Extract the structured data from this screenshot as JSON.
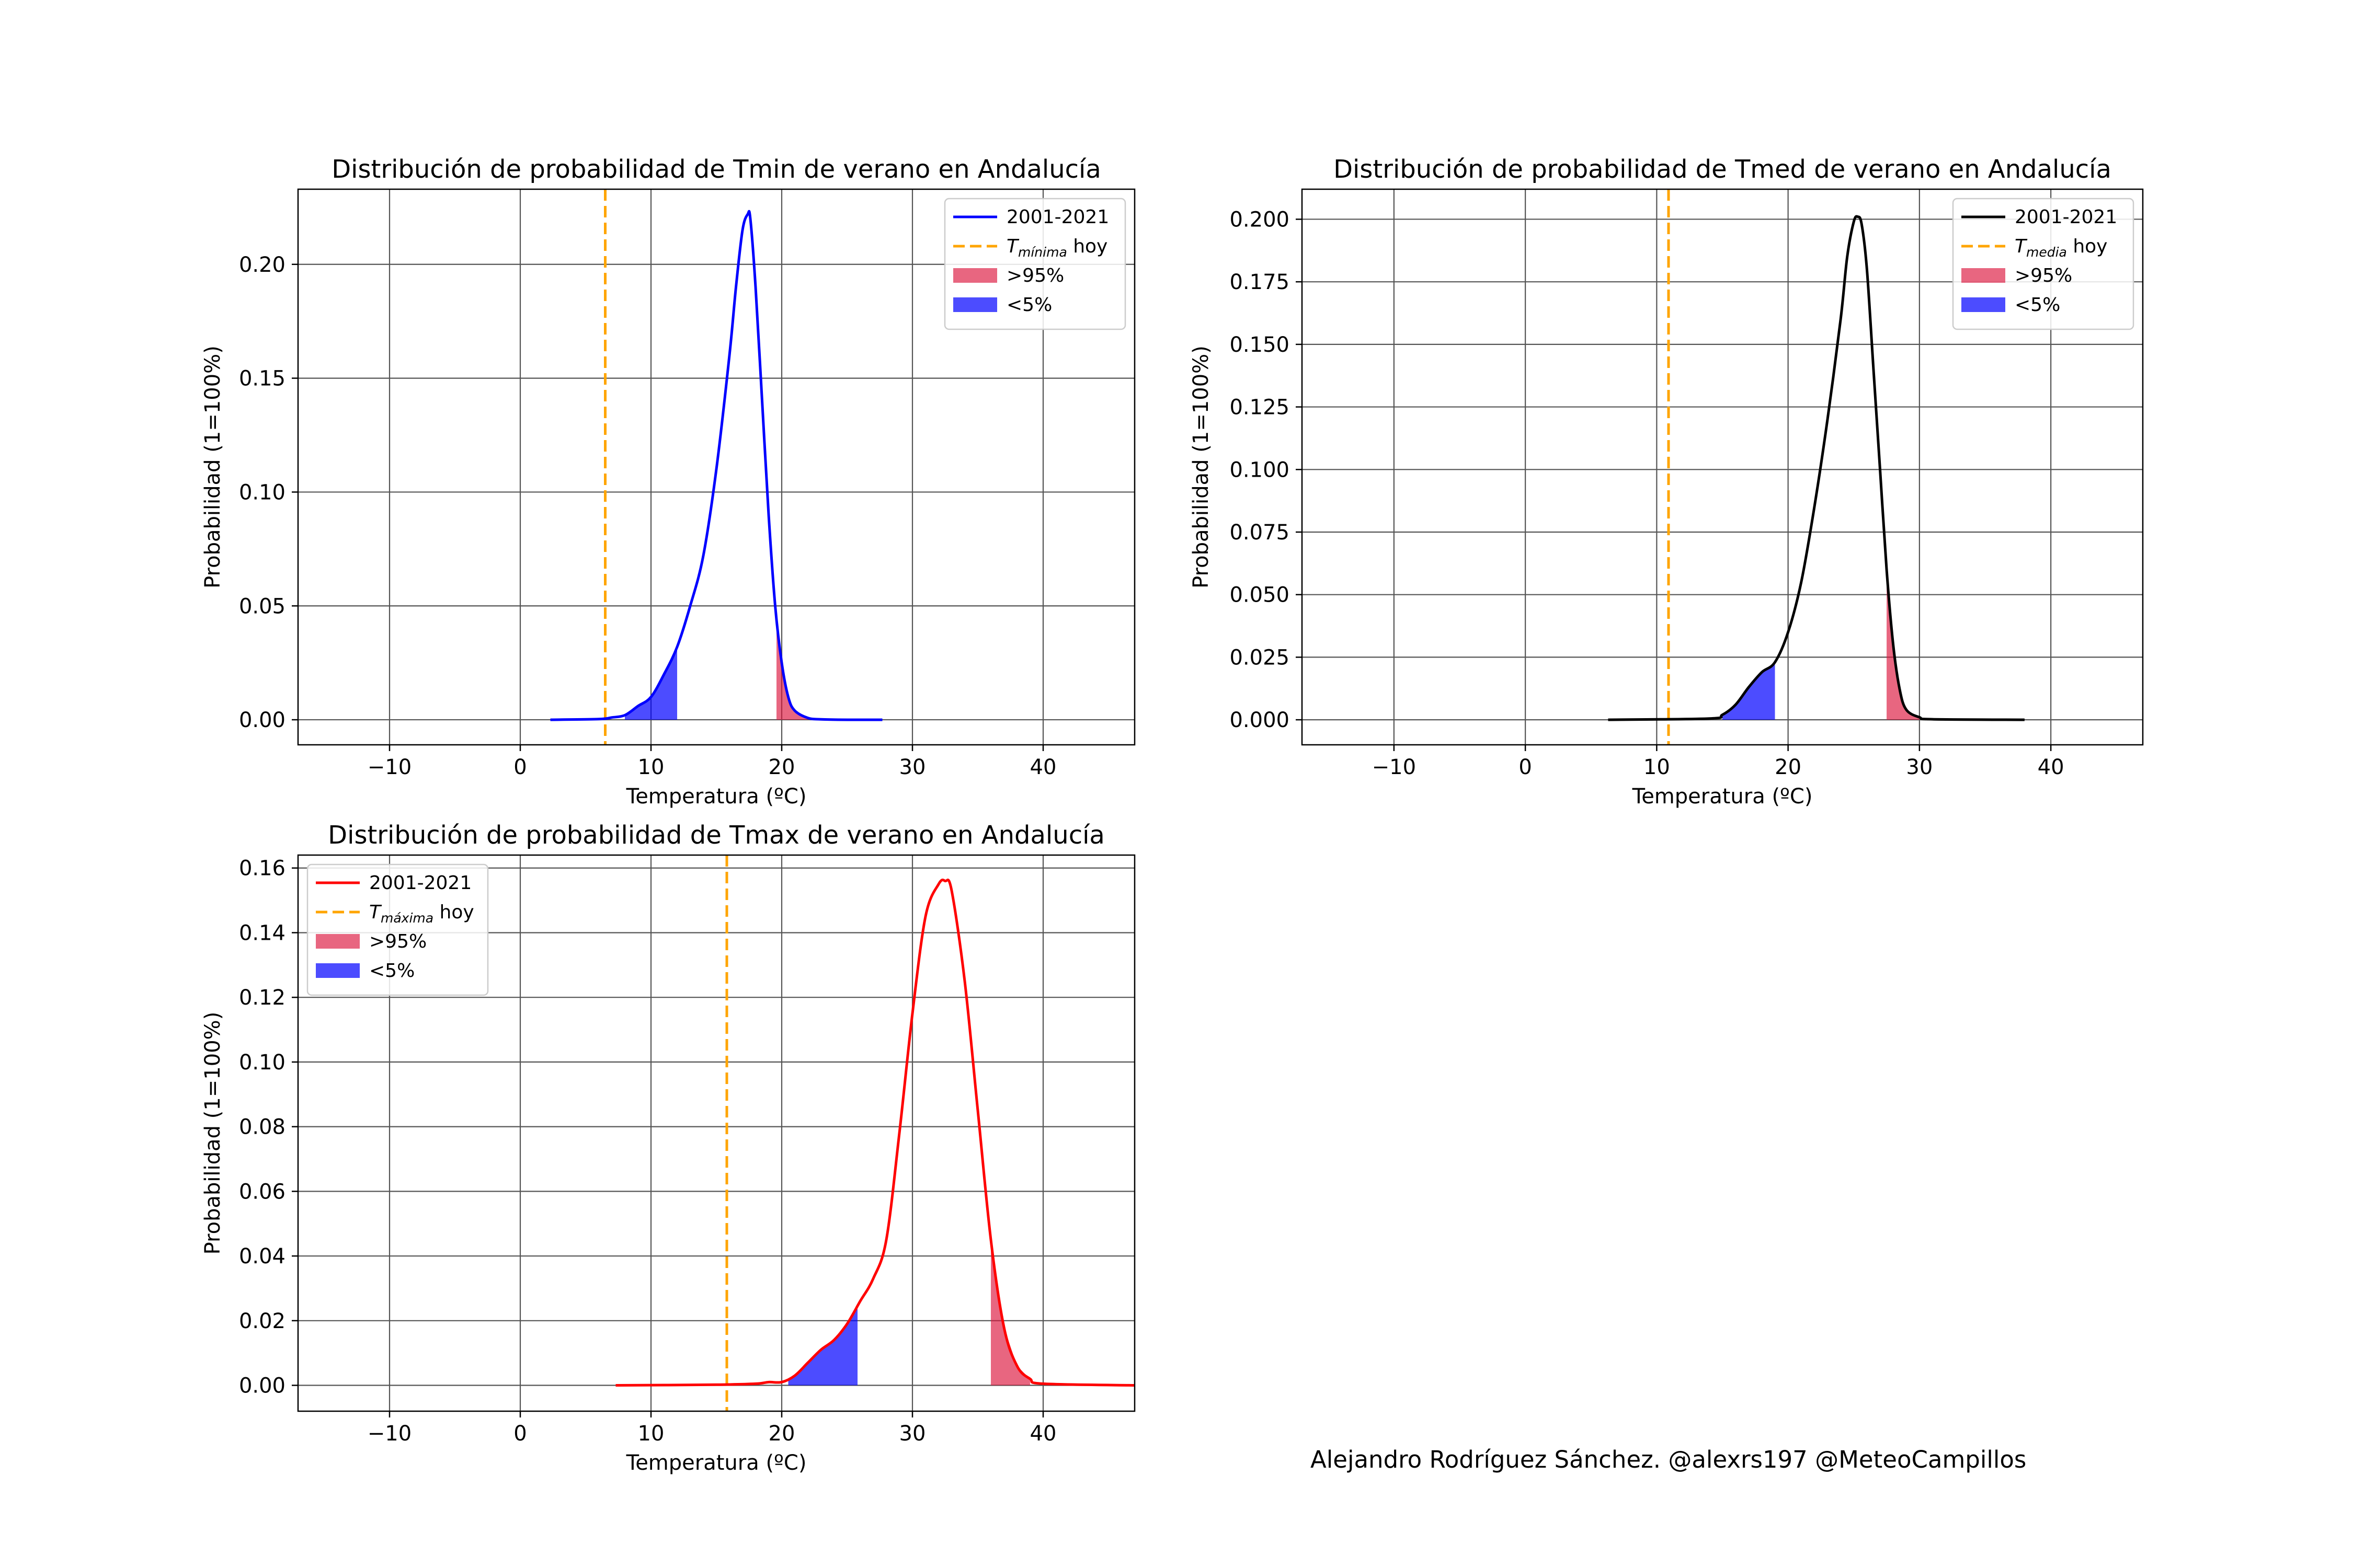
{
  "credit": "Alejandro Rodríguez Sánchez. @alexrs197 @MeteoCampillos",
  "chart_data": [
    {
      "type": "line",
      "title": "Distribución de probabilidad de Tmin de verano en Andalucía",
      "xlabel": "Temperatura (ºC)",
      "ylabel": "Probabilidad (1=100%)",
      "xlim": [
        -17,
        47
      ],
      "ylim": [
        -0.011,
        0.233
      ],
      "xticks": [
        -10,
        0,
        10,
        20,
        30,
        40
      ],
      "xtick_labels": [
        "−10",
        "0",
        "10",
        "20",
        "30",
        "40"
      ],
      "yticks": [
        0.0,
        0.05,
        0.1,
        0.15,
        0.2
      ],
      "ytick_labels": [
        "0.00",
        "0.05",
        "0.10",
        "0.15",
        "0.20"
      ],
      "grid": true,
      "legend_position": "top-right",
      "series": [
        {
          "name": "2001-2021",
          "color": "#0000ff",
          "x": [
            2.3,
            6,
            7,
            8,
            9,
            10,
            11,
            12,
            13,
            14,
            15,
            16,
            16.5,
            17,
            17.4,
            17.6,
            18,
            18.5,
            19,
            19.5,
            20,
            20.5,
            21,
            22,
            23,
            25,
            27.7
          ],
          "y": [
            0,
            0.0003,
            0.001,
            0.002,
            0.006,
            0.01,
            0.02,
            0.032,
            0.05,
            0.072,
            0.11,
            0.16,
            0.19,
            0.215,
            0.222,
            0.22,
            0.19,
            0.14,
            0.09,
            0.05,
            0.025,
            0.01,
            0.004,
            0.0008,
            0.0002,
            0,
            0
          ]
        }
      ],
      "vline": {
        "name": "T_mínima hoy",
        "legend_base": "T",
        "legend_sub": "mínima",
        "legend_rest": " hoy",
        "x": 6.5,
        "color": "#ffa500"
      },
      "fills": [
        {
          "name": ">95%",
          "color": "#dc143c",
          "from": 19.6,
          "to": 22.0
        },
        {
          "name": "<5%",
          "color": "#0000ff",
          "from": 8.0,
          "to": 12.0
        }
      ]
    },
    {
      "type": "line",
      "title": "Distribución de probabilidad de Tmed de verano en Andalucía",
      "xlabel": "Temperatura (ºC)",
      "ylabel": "Probabilidad (1=100%)",
      "xlim": [
        -17,
        47
      ],
      "ylim": [
        -0.01,
        0.212
      ],
      "xticks": [
        -10,
        0,
        10,
        20,
        30,
        40
      ],
      "xtick_labels": [
        "−10",
        "0",
        "10",
        "20",
        "30",
        "40"
      ],
      "yticks": [
        0.0,
        0.025,
        0.05,
        0.075,
        0.1,
        0.125,
        0.15,
        0.175,
        0.2
      ],
      "ytick_labels": [
        "0.000",
        "0.025",
        "0.050",
        "0.075",
        "0.100",
        "0.125",
        "0.150",
        "0.175",
        "0.200"
      ],
      "grid": true,
      "legend_position": "top-right",
      "series": [
        {
          "name": "2001-2021",
          "color": "#000000",
          "x": [
            6.3,
            14,
            15,
            16,
            17,
            18,
            19,
            20,
            21,
            22,
            23,
            24,
            24.5,
            25,
            25.3,
            25.6,
            26,
            26.5,
            27,
            27.5,
            28,
            28.5,
            29,
            30,
            31,
            38
          ],
          "y": [
            0,
            0.0005,
            0.002,
            0.006,
            0.013,
            0.019,
            0.023,
            0.035,
            0.055,
            0.085,
            0.12,
            0.16,
            0.185,
            0.199,
            0.201,
            0.198,
            0.18,
            0.14,
            0.1,
            0.06,
            0.03,
            0.012,
            0.004,
            0.001,
            0.0002,
            0
          ]
        }
      ],
      "vline": {
        "name": "T_media hoy",
        "legend_base": "T",
        "legend_sub": "media",
        "legend_rest": " hoy",
        "x": 10.9,
        "color": "#ffa500"
      },
      "fills": [
        {
          "name": ">95%",
          "color": "#dc143c",
          "from": 27.5,
          "to": 30.0
        },
        {
          "name": "<5%",
          "color": "#0000ff",
          "from": 15.0,
          "to": 19.0
        }
      ]
    },
    {
      "type": "line",
      "title": "Distribución de probabilidad de Tmax de verano en Andalucía",
      "xlabel": "Temperatura (ºC)",
      "ylabel": "Probabilidad (1=100%)",
      "xlim": [
        -17,
        47
      ],
      "ylim": [
        -0.008,
        0.164
      ],
      "xticks": [
        -10,
        0,
        10,
        20,
        30,
        40
      ],
      "xtick_labels": [
        "−10",
        "0",
        "10",
        "20",
        "30",
        "40"
      ],
      "yticks": [
        0.0,
        0.02,
        0.04,
        0.06,
        0.08,
        0.1,
        0.12,
        0.14,
        0.16
      ],
      "ytick_labels": [
        "0.00",
        "0.02",
        "0.04",
        "0.06",
        "0.08",
        "0.10",
        "0.12",
        "0.14",
        "0.16"
      ],
      "grid": true,
      "legend_position": "top-left",
      "series": [
        {
          "name": "2001-2021",
          "color": "#ff0000",
          "x": [
            7.3,
            15,
            18,
            19,
            20,
            21,
            22,
            23,
            24,
            25,
            26,
            27,
            28,
            29,
            30,
            31,
            32,
            32.5,
            33,
            34,
            35,
            36,
            37,
            38,
            39,
            40,
            47
          ],
          "y": [
            0,
            0.0002,
            0.0005,
            0.001,
            0.001,
            0.003,
            0.007,
            0.011,
            0.014,
            0.019,
            0.026,
            0.033,
            0.045,
            0.078,
            0.115,
            0.145,
            0.155,
            0.156,
            0.153,
            0.125,
            0.085,
            0.045,
            0.018,
            0.006,
            0.002,
            0.0005,
            0
          ]
        }
      ],
      "vline": {
        "name": "T_máxima hoy",
        "legend_base": "T",
        "legend_sub": "máxima",
        "legend_rest": " hoy",
        "x": 15.8,
        "color": "#ffa500"
      },
      "fills": [
        {
          "name": ">95%",
          "color": "#dc143c",
          "from": 36.0,
          "to": 39.0
        },
        {
          "name": "<5%",
          "color": "#0000ff",
          "from": 20.5,
          "to": 25.8
        }
      ]
    }
  ]
}
